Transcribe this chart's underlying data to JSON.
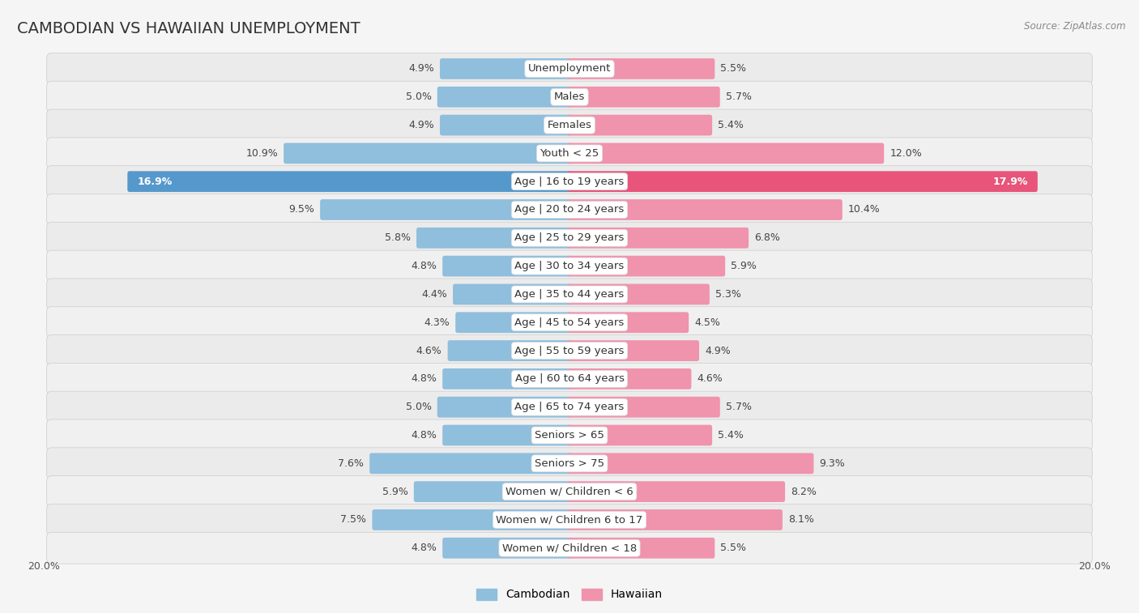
{
  "title": "CAMBODIAN VS HAWAIIAN UNEMPLOYMENT",
  "source": "Source: ZipAtlas.com",
  "categories": [
    "Unemployment",
    "Males",
    "Females",
    "Youth < 25",
    "Age | 16 to 19 years",
    "Age | 20 to 24 years",
    "Age | 25 to 29 years",
    "Age | 30 to 34 years",
    "Age | 35 to 44 years",
    "Age | 45 to 54 years",
    "Age | 55 to 59 years",
    "Age | 60 to 64 years",
    "Age | 65 to 74 years",
    "Seniors > 65",
    "Seniors > 75",
    "Women w/ Children < 6",
    "Women w/ Children 6 to 17",
    "Women w/ Children < 18"
  ],
  "cambodian": [
    4.9,
    5.0,
    4.9,
    10.9,
    16.9,
    9.5,
    5.8,
    4.8,
    4.4,
    4.3,
    4.6,
    4.8,
    5.0,
    4.8,
    7.6,
    5.9,
    7.5,
    4.8
  ],
  "hawaiian": [
    5.5,
    5.7,
    5.4,
    12.0,
    17.9,
    10.4,
    6.8,
    5.9,
    5.3,
    4.5,
    4.9,
    4.6,
    5.7,
    5.4,
    9.3,
    8.2,
    8.1,
    5.5
  ],
  "cambodian_color": "#90bedd",
  "hawaiian_color": "#f093ad",
  "highlight_cambodian_color": "#5599cc",
  "highlight_hawaiian_color": "#e8547a",
  "row_bg_light": "#ebebeb",
  "row_bg_dark": "#d8d8d8",
  "background_color": "#f5f5f5",
  "axis_max": 20.0,
  "label_fontsize": 9.5,
  "title_fontsize": 14,
  "value_fontsize": 9.0
}
